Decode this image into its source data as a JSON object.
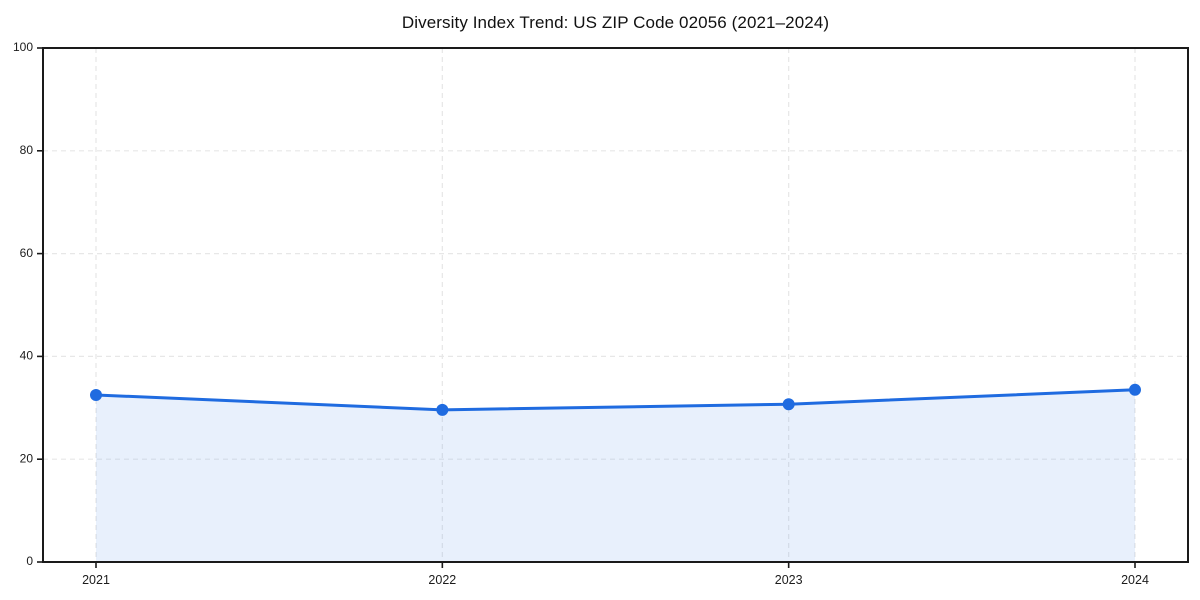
{
  "chart_data": {
    "type": "area",
    "title": "Diversity Index Trend: US ZIP Code 02056 (2021–2024)",
    "categories": [
      "2021",
      "2022",
      "2023",
      "2024"
    ],
    "x": [
      2021,
      2022,
      2023,
      2024
    ],
    "series": [
      {
        "name": "Diversity Index",
        "values": [
          32.5,
          29.6,
          30.7,
          33.5
        ]
      }
    ],
    "values": [
      32.5,
      29.6,
      30.7,
      33.5
    ],
    "xlabel": "",
    "ylabel": "",
    "ylim": [
      0,
      100
    ],
    "yticks": [
      0,
      20,
      40,
      60,
      80,
      100
    ],
    "grid": "dashed-both-axes",
    "legend_position": "none",
    "colors": {
      "line": "#1f6be0",
      "marker": "#1f6be0",
      "fill": "rgba(31,107,224,0.10)",
      "grid": "#e7e7e7",
      "axis": "#1a1a1a",
      "tick_label": "#1c1c1c",
      "background": "#ffffff"
    },
    "marker_radius": 6,
    "line_width": 3
  }
}
